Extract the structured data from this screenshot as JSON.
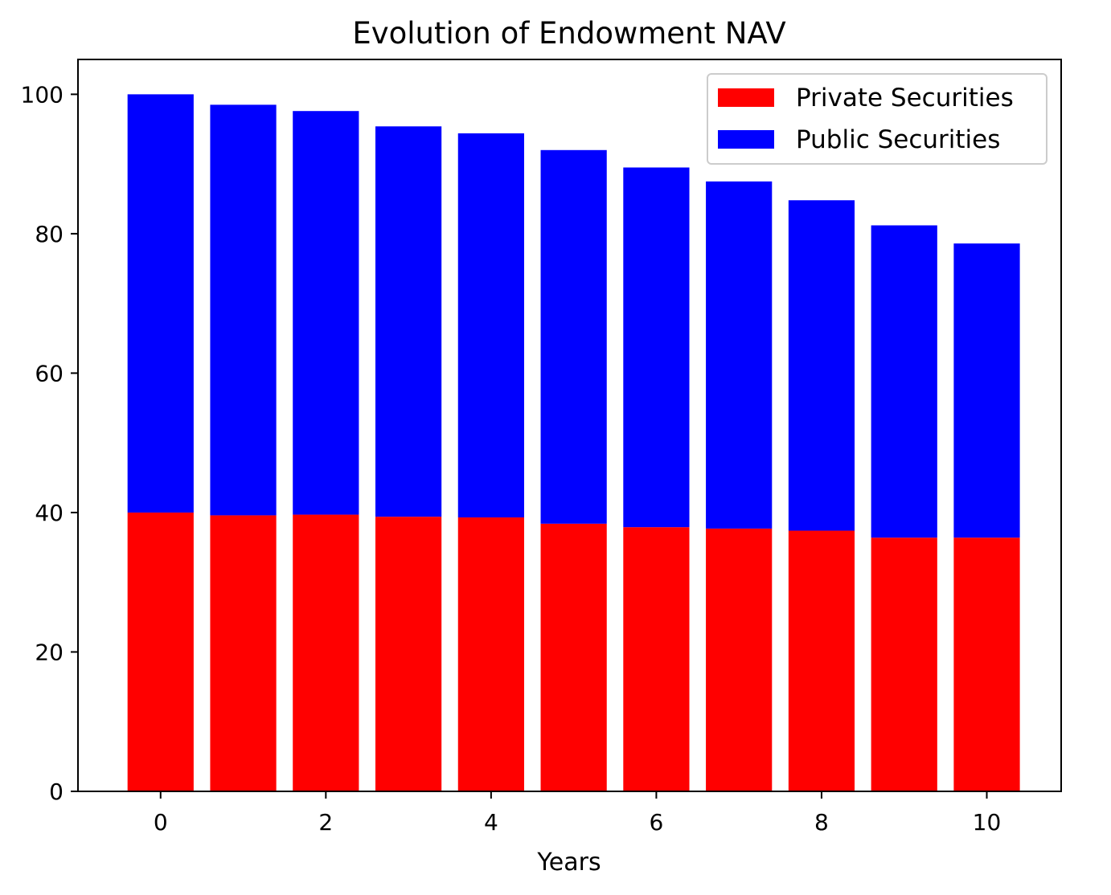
{
  "chart_data": {
    "type": "bar",
    "stacked": true,
    "title": "Evolution of Endowment NAV",
    "xlabel": "Years",
    "ylabel": "",
    "x": [
      0,
      1,
      2,
      3,
      4,
      5,
      6,
      7,
      8,
      9,
      10
    ],
    "x_ticks": [
      "0",
      "2",
      "4",
      "6",
      "8",
      "10"
    ],
    "y_ticks": [
      "0",
      "20",
      "40",
      "60",
      "80",
      "100"
    ],
    "xlim": [
      -1.0,
      10.9
    ],
    "ylim": [
      0,
      105
    ],
    "grid": false,
    "legend_position": "top-right",
    "series": [
      {
        "name": "Private Securities",
        "color": "#ff0000",
        "values": [
          40.0,
          39.6,
          39.7,
          39.4,
          39.3,
          38.4,
          37.9,
          37.7,
          37.4,
          36.4,
          36.4
        ]
      },
      {
        "name": "Public Securities",
        "color": "#0000ff",
        "values": [
          60.0,
          58.9,
          57.9,
          56.0,
          55.1,
          53.6,
          51.6,
          49.8,
          47.4,
          44.8,
          42.2
        ]
      }
    ]
  }
}
